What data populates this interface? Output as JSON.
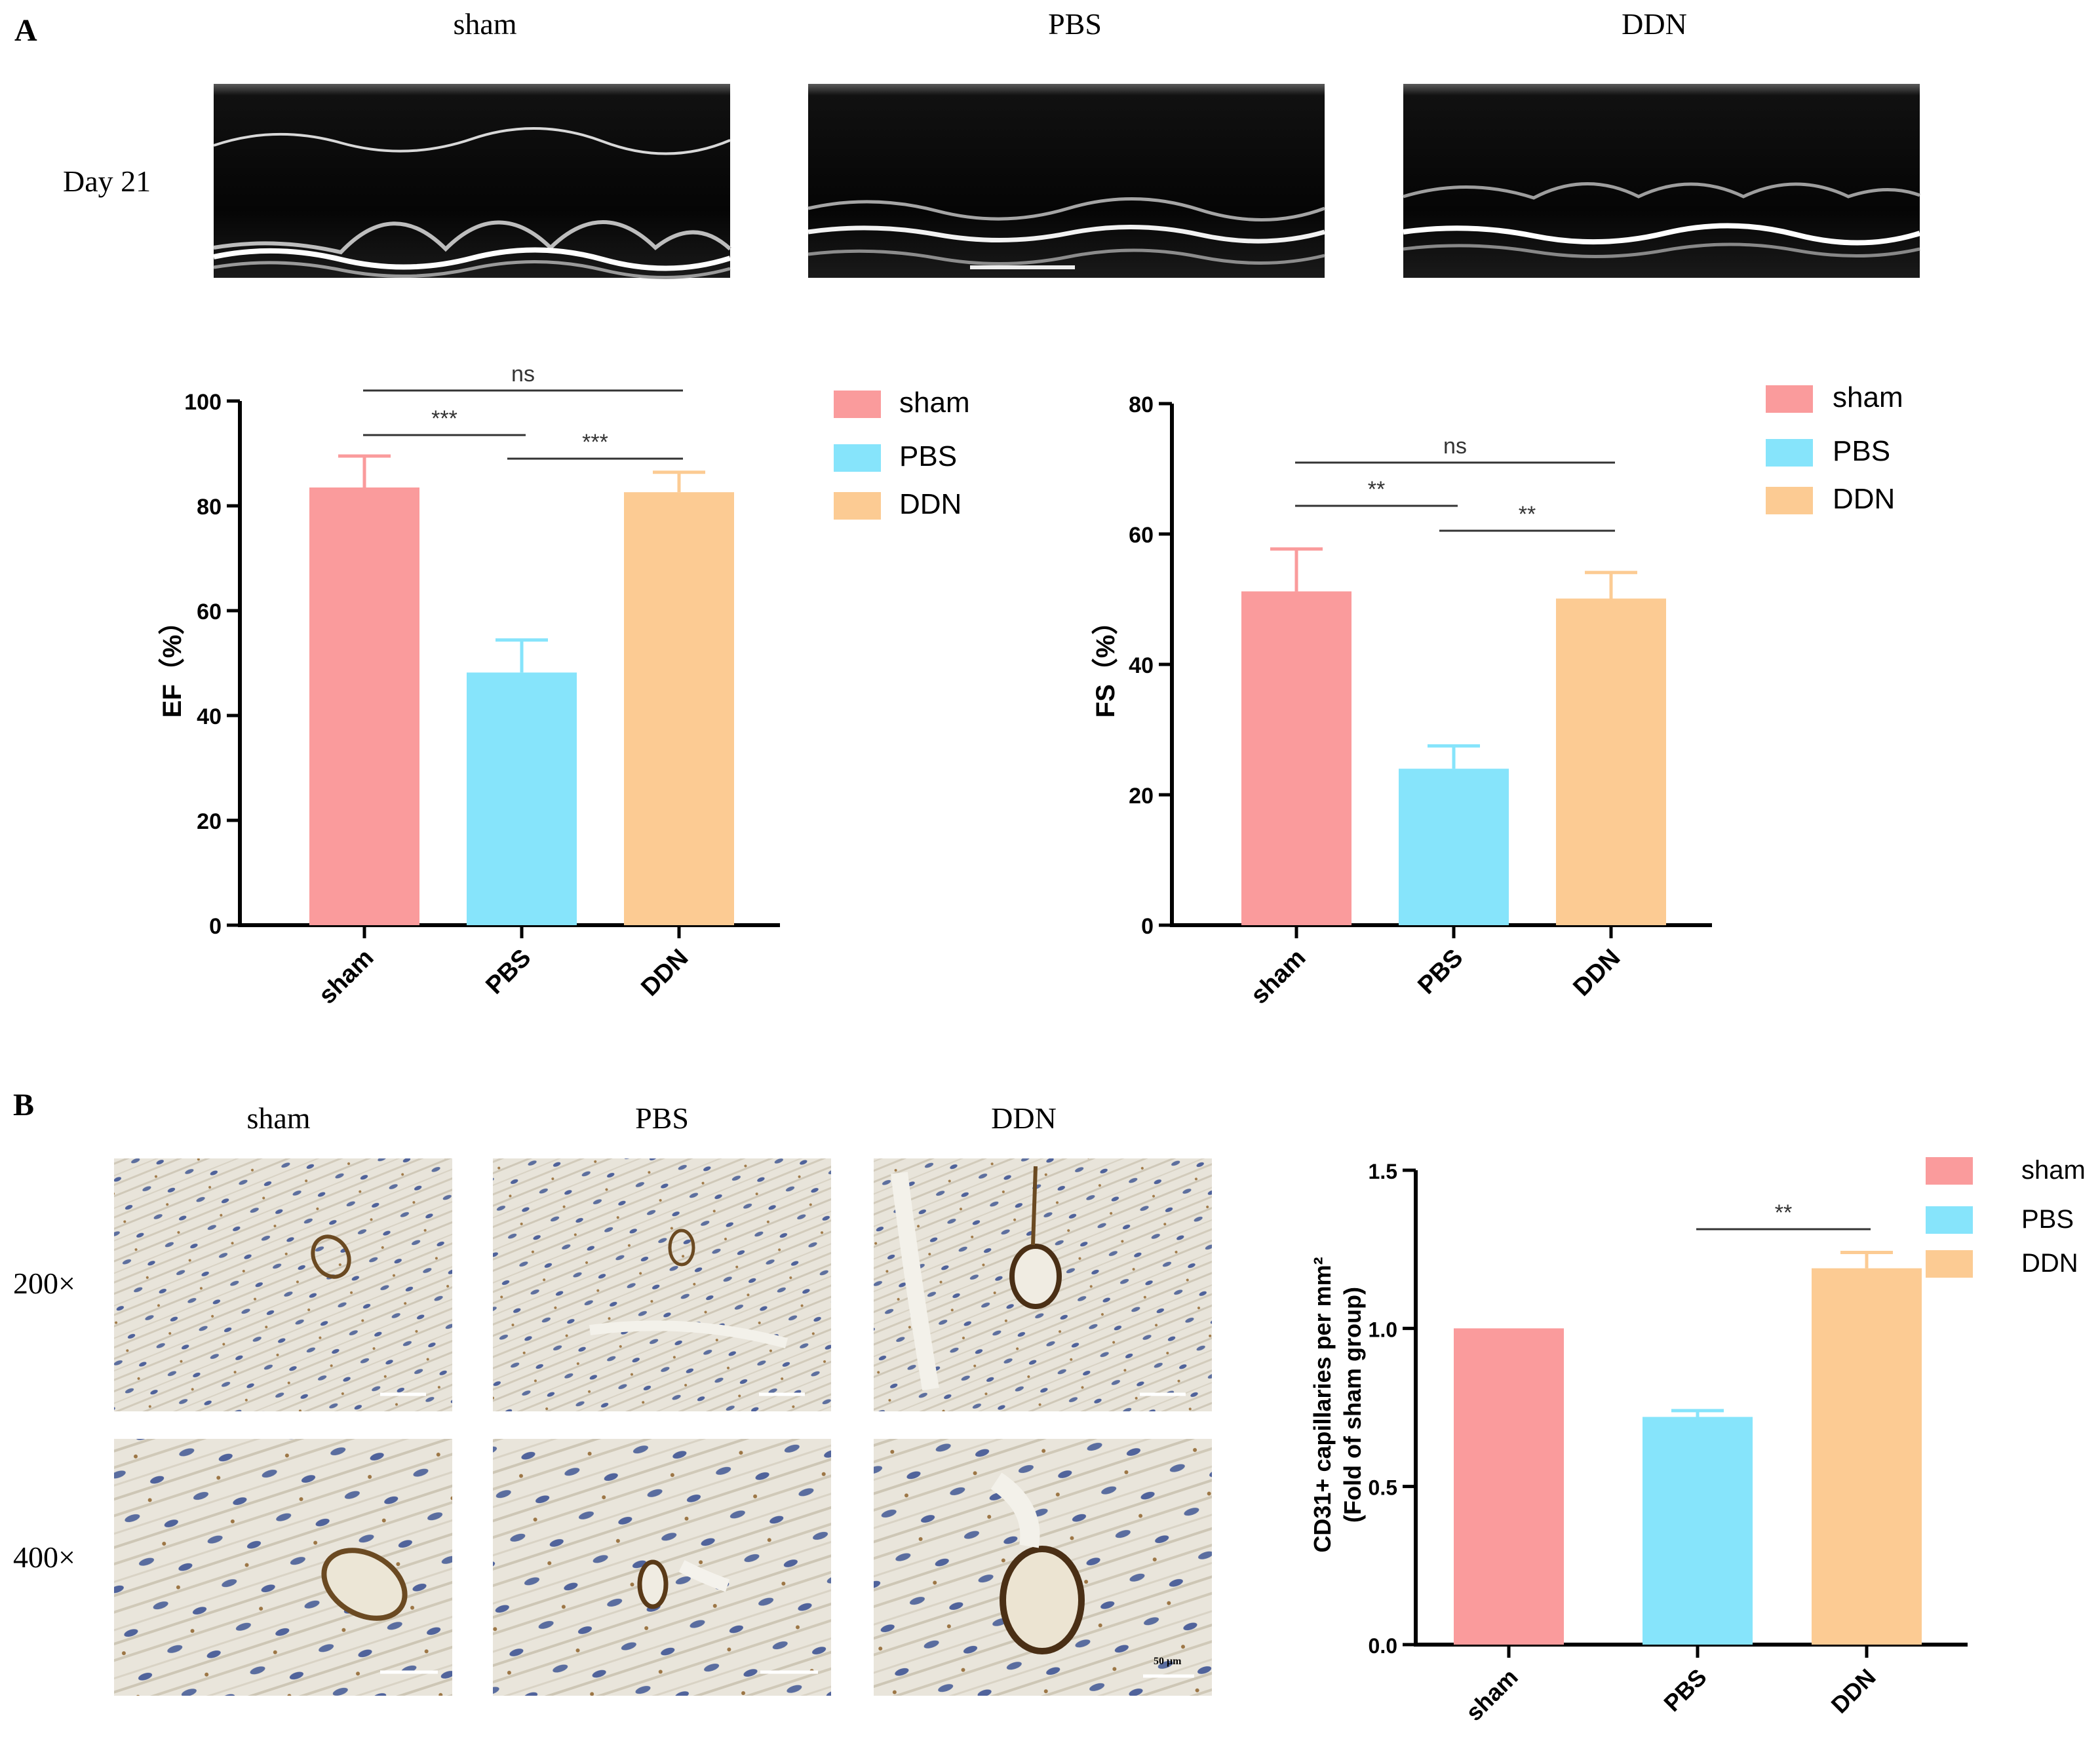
{
  "colors": {
    "sham": "#FA9B9C",
    "PBS": "#86E4FB",
    "DDN": "#FCCB93",
    "axis": "#000000",
    "sigline": "#333333",
    "image_dark": "#0b0b0b",
    "tissue": "#e7e3d9"
  },
  "panelA": {
    "label": "A",
    "row_label": "Day 21",
    "echo_titles": [
      "sham",
      "PBS",
      "DDN"
    ],
    "echo_icons": [
      "echo-mmode-image-sham",
      "echo-mmode-image-pbs",
      "echo-mmode-image-ddn"
    ]
  },
  "panelB": {
    "label": "B",
    "titles": [
      "sham",
      "PBS",
      "DDN"
    ],
    "row_labels": [
      "200×",
      "400×"
    ],
    "scalebar_text": "50 μm",
    "image_icons": [
      "cd31-ihc-image"
    ]
  },
  "chart_data": [
    {
      "type": "bar",
      "categories": [
        "sham",
        "PBS",
        "DDN"
      ],
      "values": [
        83.5,
        48.2,
        82.6
      ],
      "errors": [
        6.0,
        6.2,
        3.8
      ],
      "ylabel": "EF（%）",
      "ylim": [
        0,
        100
      ],
      "yticks": [
        "0",
        "20",
        "40",
        "60",
        "80",
        "100"
      ],
      "legend": [
        "sham",
        "PBS",
        "DDN"
      ],
      "legend_position": "top-right",
      "significance": [
        {
          "from": 0,
          "to": 1,
          "label": "***"
        },
        {
          "from": 1,
          "to": 2,
          "label": "***"
        },
        {
          "from": 0,
          "to": 2,
          "label": "ns"
        }
      ]
    },
    {
      "type": "bar",
      "categories": [
        "sham",
        "PBS",
        "DDN"
      ],
      "values": [
        51.2,
        24.0,
        50.1
      ],
      "errors": [
        6.5,
        3.5,
        4.0
      ],
      "ylabel": "FS（%）",
      "ylim": [
        0,
        80
      ],
      "yticks": [
        "0",
        "20",
        "40",
        "60",
        "80"
      ],
      "legend": [
        "sham",
        "PBS",
        "DDN"
      ],
      "legend_position": "top-right",
      "significance": [
        {
          "from": 0,
          "to": 1,
          "label": "**"
        },
        {
          "from": 1,
          "to": 2,
          "label": "**"
        },
        {
          "from": 0,
          "to": 2,
          "label": "ns"
        }
      ]
    },
    {
      "type": "bar",
      "categories": [
        "sham",
        "PBS",
        "DDN"
      ],
      "values": [
        1.0,
        0.72,
        1.19
      ],
      "errors": [
        0.0,
        0.02,
        0.05
      ],
      "ylabel_lines": [
        "CD31+ capillaries per mm²",
        "(Fold of sham group)"
      ],
      "ylim": [
        0,
        1.5
      ],
      "yticks": [
        "0.0",
        "0.5",
        "1.0",
        "1.5"
      ],
      "legend": [
        "sham",
        "PBS",
        "DDN"
      ],
      "legend_position": "top-right",
      "significance": [
        {
          "from": 1,
          "to": 2,
          "label": "**"
        }
      ]
    }
  ]
}
